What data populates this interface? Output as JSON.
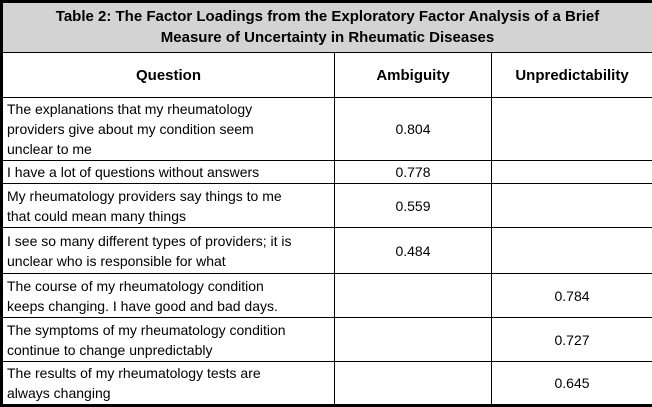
{
  "table": {
    "title": "Table 2: The Factor Loadings from the Exploratory Factor Analysis of a Brief\nMeasure of Uncertainty in Rheumatic Diseases",
    "columns": [
      "Question",
      "Ambiguity",
      "Unpredictability"
    ],
    "rows": [
      {
        "question": "The explanations that my rheumatology\nproviders give about my condition seem\nunclear to me",
        "ambiguity": "0.804",
        "unpredictability": ""
      },
      {
        "question": "I have a lot of questions without answers",
        "ambiguity": "0.778",
        "unpredictability": ""
      },
      {
        "question": "My rheumatology providers say things to me\nthat could mean many things",
        "ambiguity": "0.559",
        "unpredictability": ""
      },
      {
        "question": "I see so many different types of providers; it is\nunclear who is responsible for what",
        "ambiguity": "0.484",
        "unpredictability": ""
      },
      {
        "question": "The course of my rheumatology condition\nkeeps changing. I have good and bad days.",
        "ambiguity": "",
        "unpredictability": "0.784"
      },
      {
        "question": "The symptoms of my rheumatology condition\ncontinue to change unpredictably",
        "ambiguity": "",
        "unpredictability": "0.727"
      },
      {
        "question": "The results of my rheumatology tests are\nalways changing",
        "ambiguity": "",
        "unpredictability": "0.645"
      }
    ]
  },
  "colors": {
    "title_background": "#d3d3d3",
    "border": "#000000",
    "text": "#000000"
  }
}
